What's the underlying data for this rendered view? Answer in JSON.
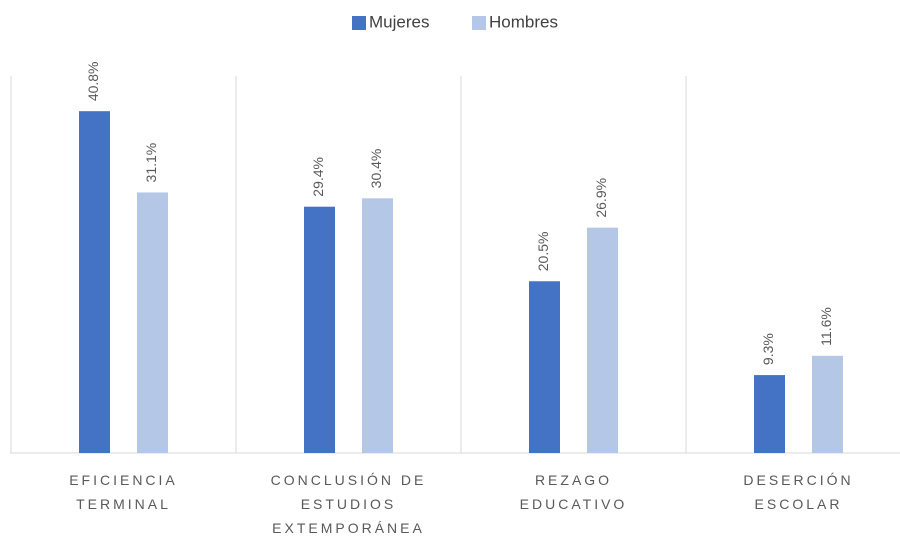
{
  "chart_data": {
    "type": "bar",
    "categories": [
      "EFICIENCIA TERMINAL",
      "CONCLUSIÓN DE ESTUDIOS EXTEMPORÁNEA",
      "REZAGO EDUCATIVO",
      "DESERCIÓN ESCOLAR"
    ],
    "series": [
      {
        "name": "Mujeres",
        "color": "#4472c4",
        "values": [
          40.8,
          29.4,
          20.5,
          9.3
        ],
        "value_labels": [
          "40.8%",
          "29.4%",
          "20.5%",
          "9.3%"
        ]
      },
      {
        "name": "Hombres",
        "color": "#b4c7e7",
        "values": [
          31.1,
          30.4,
          26.9,
          11.6
        ],
        "value_labels": [
          "31.1%",
          "30.4%",
          "26.9%",
          "11.6%"
        ]
      }
    ],
    "ylim": [
      0,
      45
    ],
    "legend": "top"
  }
}
